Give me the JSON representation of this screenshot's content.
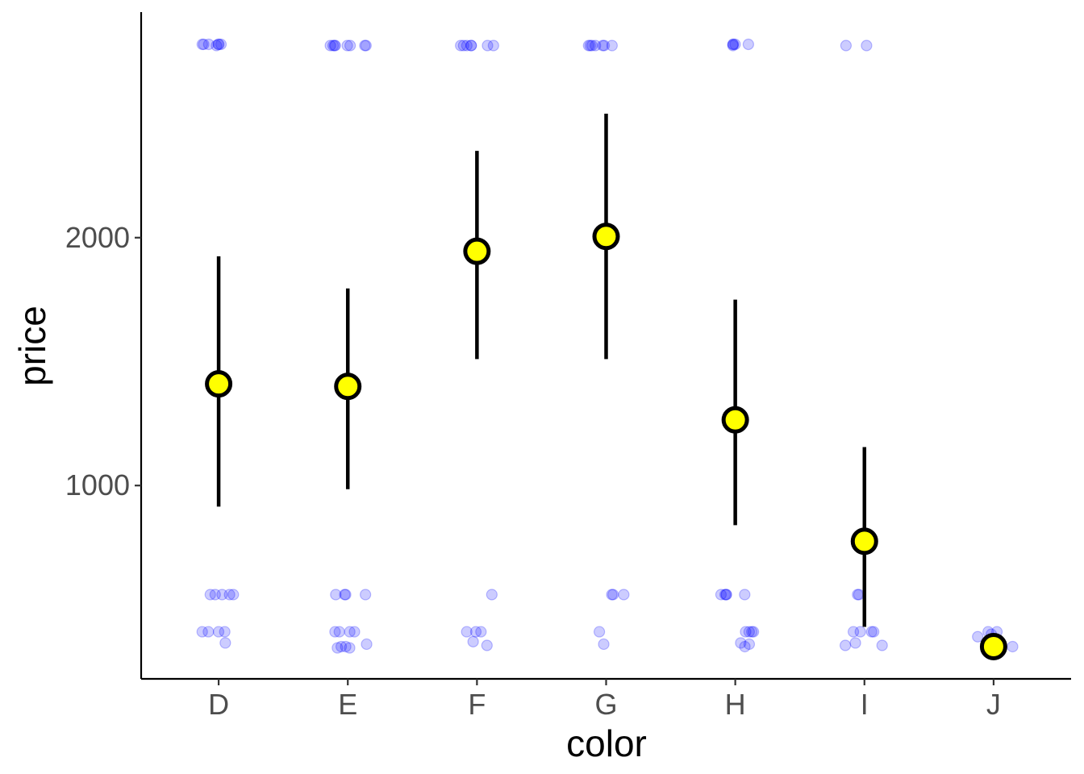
{
  "chart_data": {
    "type": "scatter",
    "xlabel": "color",
    "ylabel": "price",
    "categories": [
      "D",
      "E",
      "F",
      "G",
      "H",
      "I",
      "J"
    ],
    "ylim": [
      220,
      2910
    ],
    "yticks": [
      1000,
      2000
    ],
    "grid": false,
    "legend": "none",
    "summary": {
      "mean": [
        1410,
        1400,
        1945,
        2005,
        1265,
        775,
        350
      ],
      "lower": [
        915,
        985,
        1510,
        1510,
        840,
        430,
        350
      ],
      "upper": [
        1925,
        1795,
        2350,
        2500,
        1750,
        1155,
        350
      ]
    },
    "raw_points": [
      {
        "category": "D",
        "values": [
          2780,
          2780,
          2780,
          2780,
          2775,
          2780,
          2780,
          560,
          560,
          560,
          560,
          560,
          410,
          410,
          410,
          410,
          365
        ]
      },
      {
        "category": "E",
        "values": [
          2775,
          2775,
          2775,
          2775,
          2775,
          2775,
          2775,
          2775,
          560,
          560,
          560,
          560,
          410,
          410,
          410,
          410,
          360,
          350,
          345,
          345,
          350
        ]
      },
      {
        "category": "F",
        "values": [
          2775,
          2775,
          2775,
          2775,
          2775,
          2775,
          2775,
          560,
          410,
          410,
          410,
          370,
          355
        ]
      },
      {
        "category": "G",
        "values": [
          2775,
          2775,
          2775,
          2775,
          2775,
          2775,
          2775,
          560,
          560,
          560,
          410,
          360
        ]
      },
      {
        "category": "H",
        "values": [
          2780,
          2780,
          2780,
          2780,
          2775,
          560,
          560,
          560,
          560,
          560,
          410,
          410,
          410,
          410,
          360,
          350,
          365
        ]
      },
      {
        "category": "I",
        "values": [
          2775,
          2775,
          560,
          560,
          410,
          410,
          410,
          410,
          365,
          355,
          355
        ]
      },
      {
        "category": "J",
        "values": [
          410,
          410,
          400,
          390,
          350,
          345
        ]
      }
    ],
    "colors": {
      "raw_points": "#0000ff",
      "mean_fill": "#ffff00",
      "mean_stroke": "#000000",
      "error_bar": "#000000"
    }
  }
}
